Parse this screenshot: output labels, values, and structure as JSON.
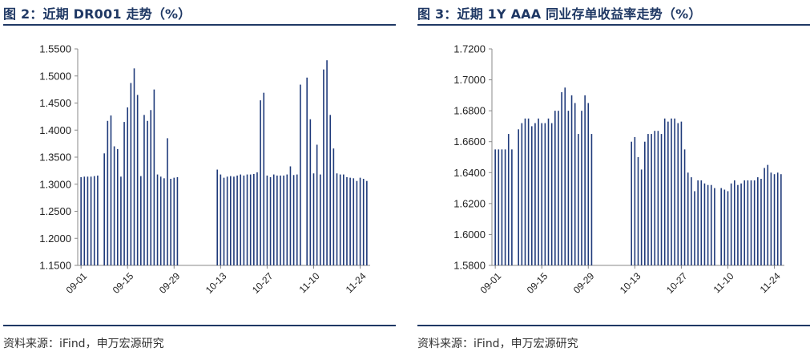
{
  "chart_data": [
    {
      "type": "bar",
      "title": "图 2：近期 DR001 走势（%）",
      "source": "资料来源：iFind，申万宏源研究",
      "ylim": [
        1.15,
        1.55
      ],
      "yticks": [
        "1.1500",
        "1.2000",
        "1.2500",
        "1.3000",
        "1.3500",
        "1.4000",
        "1.4500",
        "1.5000",
        "1.5500"
      ],
      "xticks": [
        "09-01",
        "09-15",
        "09-29",
        "10-13",
        "10-27",
        "11-10",
        "11-24"
      ],
      "xticks_days": [
        1,
        15,
        29,
        43,
        57,
        71,
        85
      ],
      "x_days": [
        1,
        2,
        3,
        4,
        5,
        6,
        8,
        9,
        10,
        11,
        12,
        13,
        14,
        15,
        16,
        17,
        18,
        19,
        20,
        21,
        22,
        23,
        24,
        25,
        26,
        27,
        28,
        29,
        30,
        42,
        43,
        44,
        45,
        46,
        47,
        48,
        49,
        50,
        51,
        52,
        53,
        54,
        55,
        56,
        57,
        58,
        59,
        60,
        61,
        62,
        63,
        64,
        65,
        66,
        67,
        69,
        70,
        71,
        72,
        73,
        74,
        75,
        76,
        77,
        78,
        79,
        80,
        81,
        82,
        83,
        84,
        85,
        86,
        87
      ],
      "values": [
        1.313,
        1.314,
        1.314,
        1.314,
        1.315,
        1.316,
        1.357,
        1.417,
        1.427,
        1.37,
        1.365,
        1.314,
        1.415,
        1.442,
        1.487,
        1.514,
        1.465,
        1.315,
        1.428,
        1.417,
        1.437,
        1.475,
        1.318,
        1.314,
        1.311,
        1.385,
        1.31,
        1.312,
        1.313,
        1.327,
        1.318,
        1.312,
        1.314,
        1.315,
        1.314,
        1.316,
        1.318,
        1.316,
        1.318,
        1.318,
        1.319,
        1.322,
        1.455,
        1.469,
        1.316,
        1.313,
        1.318,
        1.316,
        1.316,
        1.316,
        1.318,
        1.333,
        1.317,
        1.318,
        1.484,
        1.497,
        1.42,
        1.32,
        1.373,
        1.318,
        1.512,
        1.529,
        1.428,
        1.366,
        1.32,
        1.318,
        1.318,
        1.313,
        1.312,
        1.311,
        1.306,
        1.312,
        1.31,
        1.306
      ],
      "bar_color": "#1f3a7a"
    },
    {
      "type": "bar",
      "title": "图 3：近期 1Y AAA 同业存单收益率走势（%）",
      "source": "资料来源：iFind，申万宏源研究",
      "ylim": [
        1.58,
        1.72
      ],
      "yticks": [
        "1.5800",
        "1.6000",
        "1.6200",
        "1.6400",
        "1.6600",
        "1.6800",
        "1.7000",
        "1.7200"
      ],
      "xticks": [
        "09-01",
        "09-15",
        "09-29",
        "10-13",
        "10-27",
        "11-10",
        "11-24"
      ],
      "xticks_days": [
        1,
        15,
        29,
        43,
        57,
        71,
        85
      ],
      "x_days": [
        1,
        2,
        3,
        4,
        5,
        6,
        8,
        9,
        10,
        11,
        12,
        13,
        14,
        15,
        16,
        17,
        18,
        19,
        20,
        21,
        22,
        23,
        24,
        25,
        26,
        27,
        28,
        29,
        30,
        42,
        43,
        44,
        45,
        46,
        47,
        48,
        49,
        50,
        51,
        52,
        53,
        54,
        55,
        56,
        57,
        58,
        59,
        60,
        61,
        62,
        63,
        64,
        65,
        66,
        67,
        69,
        70,
        71,
        72,
        73,
        74,
        75,
        76,
        77,
        78,
        79,
        80,
        81,
        82,
        83,
        84,
        85,
        86,
        87
      ],
      "values": [
        1.655,
        1.655,
        1.655,
        1.655,
        1.665,
        1.655,
        1.668,
        1.672,
        1.675,
        1.675,
        1.67,
        1.672,
        1.675,
        1.672,
        1.672,
        1.675,
        1.672,
        1.68,
        1.68,
        1.692,
        1.695,
        1.68,
        1.69,
        1.685,
        1.665,
        1.68,
        1.69,
        1.685,
        1.665,
        1.66,
        1.663,
        1.65,
        1.642,
        1.66,
        1.665,
        1.665,
        1.667,
        1.667,
        1.665,
        1.675,
        1.673,
        1.675,
        1.675,
        1.672,
        1.673,
        1.655,
        1.64,
        1.637,
        1.628,
        1.635,
        1.635,
        1.633,
        1.632,
        1.632,
        1.63,
        1.63,
        1.629,
        1.628,
        1.633,
        1.635,
        1.632,
        1.633,
        1.635,
        1.635,
        1.635,
        1.635,
        1.637,
        1.636,
        1.643,
        1.645,
        1.64,
        1.639,
        1.64,
        1.639
      ],
      "bar_color": "#1f3a7a"
    }
  ]
}
